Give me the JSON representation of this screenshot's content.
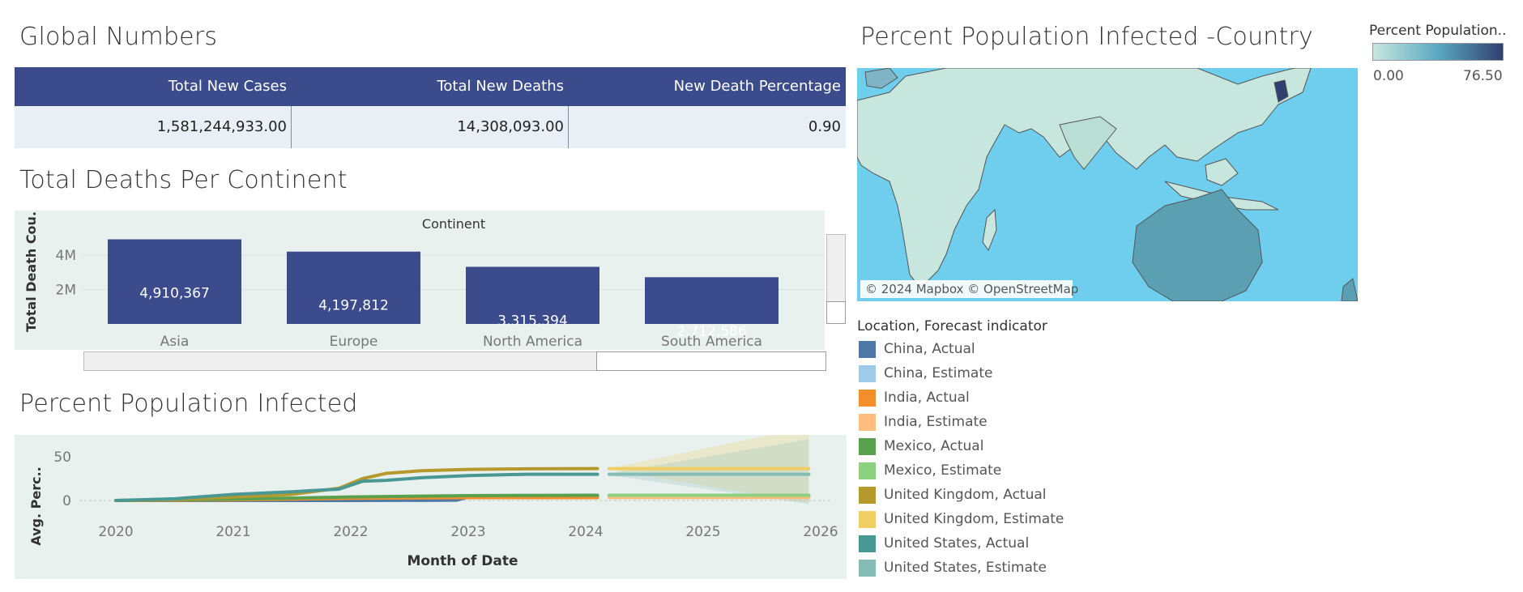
{
  "titles": {
    "global": "Global Numbers",
    "deaths": "Total Deaths Per Continent",
    "infected": "Percent Population Infected",
    "map": "Percent Population Infected -Country"
  },
  "global_numbers": {
    "headers": [
      "Total New Cases",
      "Total New Deaths",
      "New Death Percentage"
    ],
    "values": [
      "1,581,244,933.00",
      "14,308,093.00",
      "0.90"
    ]
  },
  "map": {
    "legend_title": "Percent Population..",
    "legend_min": "0.00",
    "legend_max": "76.50",
    "attribution": "© 2024 Mapbox © OpenStreetMap",
    "colors": {
      "ocean": "#6fcdee",
      "land_low": "#c7e6dd",
      "land_high": "#3a6c91"
    }
  },
  "forecast_legend": {
    "title": "Location, Forecast indicator",
    "items": [
      {
        "label": "China, Actual",
        "color": "#4e79a7"
      },
      {
        "label": "China, Estimate",
        "color": "#a0cbe8"
      },
      {
        "label": "India, Actual",
        "color": "#f28e2b"
      },
      {
        "label": "India, Estimate",
        "color": "#ffbe7d"
      },
      {
        "label": "Mexico, Actual",
        "color": "#59a14f"
      },
      {
        "label": "Mexico, Estimate",
        "color": "#8cd17d"
      },
      {
        "label": "United Kingdom, Actual",
        "color": "#b6992d"
      },
      {
        "label": "United Kingdom, Estimate",
        "color": "#f1ce63"
      },
      {
        "label": "United States, Actual",
        "color": "#499894"
      },
      {
        "label": "United States, Estimate",
        "color": "#86bcb6"
      }
    ]
  },
  "chart_data": [
    {
      "type": "bar",
      "title": "Total Deaths Per Continent",
      "header": "Continent",
      "ylabel": "Total Death Cou..",
      "yticks": [
        "4M",
        "2M"
      ],
      "ytick_values": [
        4000000,
        2000000
      ],
      "categories": [
        "Asia",
        "Europe",
        "North America",
        "South America"
      ],
      "values": [
        4910367,
        4197812,
        3315394,
        2712586
      ],
      "value_labels": [
        "4,910,367",
        "4,197,812",
        "3,315,394",
        "2,712,586"
      ],
      "bar_color": "#3b4b8c"
    },
    {
      "type": "line",
      "title": "Percent Population Infected",
      "xlabel": "Month of Date",
      "ylabel": "Avg. Perc..",
      "xticks": [
        "2020",
        "2021",
        "2022",
        "2023",
        "2024",
        "2025",
        "2026"
      ],
      "yticks": [
        "50",
        "0"
      ],
      "series": [
        {
          "name": "China, Actual",
          "color": "#4e79a7",
          "x": [
            2020,
            2021,
            2022,
            2022.9,
            2023.0,
            2023.5,
            2024.1
          ],
          "y": [
            0,
            0,
            0,
            0.3,
            4,
            4.2,
            4.3
          ]
        },
        {
          "name": "India, Actual",
          "color": "#f28e2b",
          "x": [
            2020,
            2021,
            2022,
            2023,
            2024.1
          ],
          "y": [
            0,
            0.7,
            2.5,
            3.2,
            3.2
          ]
        },
        {
          "name": "Mexico, Actual",
          "color": "#59a14f",
          "x": [
            2020,
            2021,
            2022,
            2023,
            2024.1
          ],
          "y": [
            0,
            1.5,
            4,
            5.6,
            6
          ]
        },
        {
          "name": "United Kingdom, Actual",
          "color": "#b6992d",
          "x": [
            2020,
            2020.5,
            2021,
            2021.5,
            2021.9,
            2022.1,
            2022.3,
            2022.6,
            2023,
            2023.5,
            2024.1
          ],
          "y": [
            0,
            1,
            4,
            7,
            14,
            25,
            31,
            34,
            35.5,
            36.2,
            36.5
          ]
        },
        {
          "name": "United States, Actual",
          "color": "#499894",
          "x": [
            2020,
            2020.5,
            2021,
            2021.5,
            2021.9,
            2022.1,
            2022.3,
            2022.6,
            2023,
            2023.5,
            2024.1
          ],
          "y": [
            0,
            2,
            7,
            10,
            13,
            22,
            23,
            26,
            28.5,
            30,
            30
          ]
        },
        {
          "name": "China, Estimate",
          "color": "#a0cbe8",
          "x": [
            2024.2,
            2025.9
          ],
          "y": [
            4.5,
            4.5
          ]
        },
        {
          "name": "India, Estimate",
          "color": "#ffbe7d",
          "x": [
            2024.2,
            2025.9
          ],
          "y": [
            3.3,
            3.3
          ]
        },
        {
          "name": "Mexico, Estimate",
          "color": "#8cd17d",
          "x": [
            2024.2,
            2025.9
          ],
          "y": [
            6,
            6
          ]
        },
        {
          "name": "United Kingdom, Estimate",
          "color": "#f1ce63",
          "x": [
            2024.2,
            2025.9
          ],
          "y": [
            36.5,
            36.5
          ]
        },
        {
          "name": "United States, Estimate",
          "color": "#86bcb6",
          "x": [
            2024.2,
            2025.9
          ],
          "y": [
            30,
            30
          ]
        }
      ]
    }
  ]
}
